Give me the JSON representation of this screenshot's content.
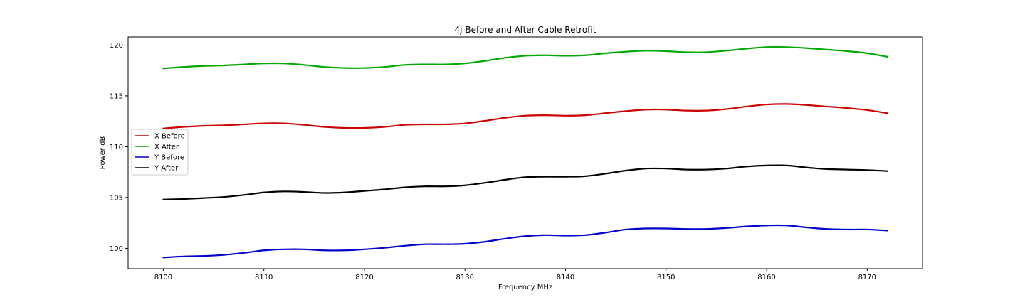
{
  "chart_data": {
    "type": "line",
    "title": "4j Before and After Cable Retrofit",
    "xlabel": "Frequency MHz",
    "ylabel": "Power dB",
    "xlim": [
      8096.5,
      8175.5
    ],
    "ylim": [
      98.0,
      120.8
    ],
    "xticks": [
      8100,
      8110,
      8120,
      8130,
      8140,
      8150,
      8160,
      8170
    ],
    "yticks": [
      100,
      105,
      110,
      115,
      120
    ],
    "grid": false,
    "legend_position": "center-left",
    "x": [
      8100,
      8102,
      8104,
      8106,
      8108,
      8110,
      8112,
      8114,
      8116,
      8118,
      8120,
      8122,
      8124,
      8126,
      8128,
      8130,
      8132,
      8134,
      8136,
      8138,
      8140,
      8142,
      8144,
      8146,
      8148,
      8150,
      8152,
      8154,
      8156,
      8158,
      8160,
      8162,
      8164,
      8166,
      8168,
      8170,
      8172
    ],
    "series": [
      {
        "name": "X Before",
        "color": "#cc0000",
        "values": [
          111.8,
          111.95,
          112.05,
          112.1,
          112.2,
          112.3,
          112.3,
          112.15,
          111.95,
          111.85,
          111.85,
          111.95,
          112.15,
          112.2,
          112.2,
          112.3,
          112.55,
          112.85,
          113.05,
          113.1,
          113.05,
          113.1,
          113.3,
          113.5,
          113.65,
          113.65,
          113.55,
          113.55,
          113.7,
          113.95,
          114.15,
          114.2,
          114.1,
          113.95,
          113.8,
          113.6,
          113.3
        ]
      },
      {
        "name": "X After",
        "color": "#00aa00",
        "values": [
          117.7,
          117.85,
          117.95,
          118.0,
          118.1,
          118.2,
          118.2,
          118.05,
          117.85,
          117.75,
          117.75,
          117.85,
          118.05,
          118.1,
          118.1,
          118.2,
          118.45,
          118.75,
          118.95,
          119.0,
          118.95,
          119.0,
          119.2,
          119.35,
          119.45,
          119.4,
          119.3,
          119.3,
          119.45,
          119.65,
          119.8,
          119.8,
          119.7,
          119.55,
          119.4,
          119.2,
          118.85
        ]
      },
      {
        "name": "Y Before",
        "color": "#0000cc",
        "values": [
          99.1,
          99.2,
          99.25,
          99.35,
          99.55,
          99.8,
          99.9,
          99.9,
          99.8,
          99.8,
          99.9,
          100.05,
          100.25,
          100.4,
          100.4,
          100.45,
          100.65,
          100.95,
          101.2,
          101.3,
          101.25,
          101.3,
          101.55,
          101.85,
          101.95,
          101.95,
          101.9,
          101.9,
          102.0,
          102.15,
          102.25,
          102.25,
          102.05,
          101.9,
          101.85,
          101.85,
          101.75
        ]
      },
      {
        "name": "Y After",
        "color": "#000000",
        "values": [
          104.8,
          104.85,
          104.95,
          105.05,
          105.25,
          105.5,
          105.6,
          105.55,
          105.45,
          105.5,
          105.65,
          105.8,
          106.0,
          106.1,
          106.1,
          106.2,
          106.45,
          106.75,
          107.0,
          107.05,
          107.05,
          107.1,
          107.35,
          107.65,
          107.85,
          107.85,
          107.75,
          107.75,
          107.85,
          108.05,
          108.15,
          108.15,
          107.95,
          107.8,
          107.75,
          107.7,
          107.6
        ]
      }
    ]
  }
}
